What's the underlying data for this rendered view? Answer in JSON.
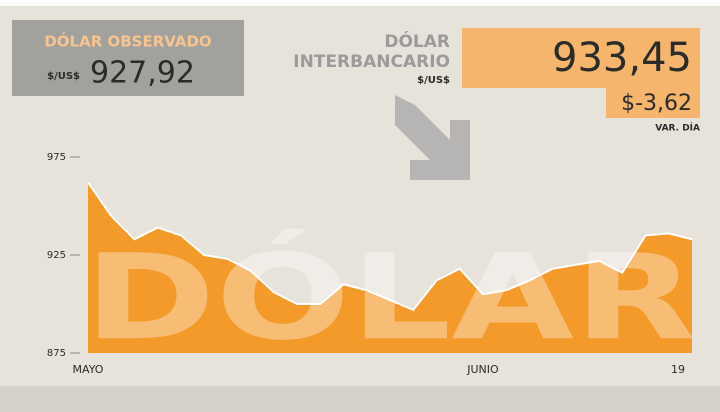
{
  "chart_data": {
    "type": "area",
    "label_observado": "DÓLAR OBSERVADO",
    "unit_observado": "$/US$",
    "value_observado": "927,92",
    "label_interbancario_1": "DÓLAR",
    "label_interbancario_2": "INTERBANCARIO",
    "unit_interbancario": "$/US$",
    "value_interbancario": "933,45",
    "variation": "$-3,62",
    "variation_label": "VAR. DÍA",
    "watermark": "DÓLAR",
    "categories": [
      "MAYO",
      null,
      null,
      null,
      null,
      null,
      null,
      null,
      null,
      null,
      null,
      null,
      null,
      null,
      null,
      null,
      null,
      "JUNIO",
      null,
      null,
      null,
      null,
      null,
      null,
      null,
      null,
      "19"
    ],
    "values": [
      962,
      945,
      933,
      939,
      935,
      925,
      923,
      917,
      906,
      900,
      900,
      910,
      907,
      902,
      897,
      912,
      918,
      905,
      907,
      912,
      918,
      920,
      922,
      916,
      935,
      936,
      933
    ],
    "color": "#f39a2b",
    "ylim": [
      875,
      975
    ],
    "yticks": [
      875,
      925,
      975
    ]
  }
}
